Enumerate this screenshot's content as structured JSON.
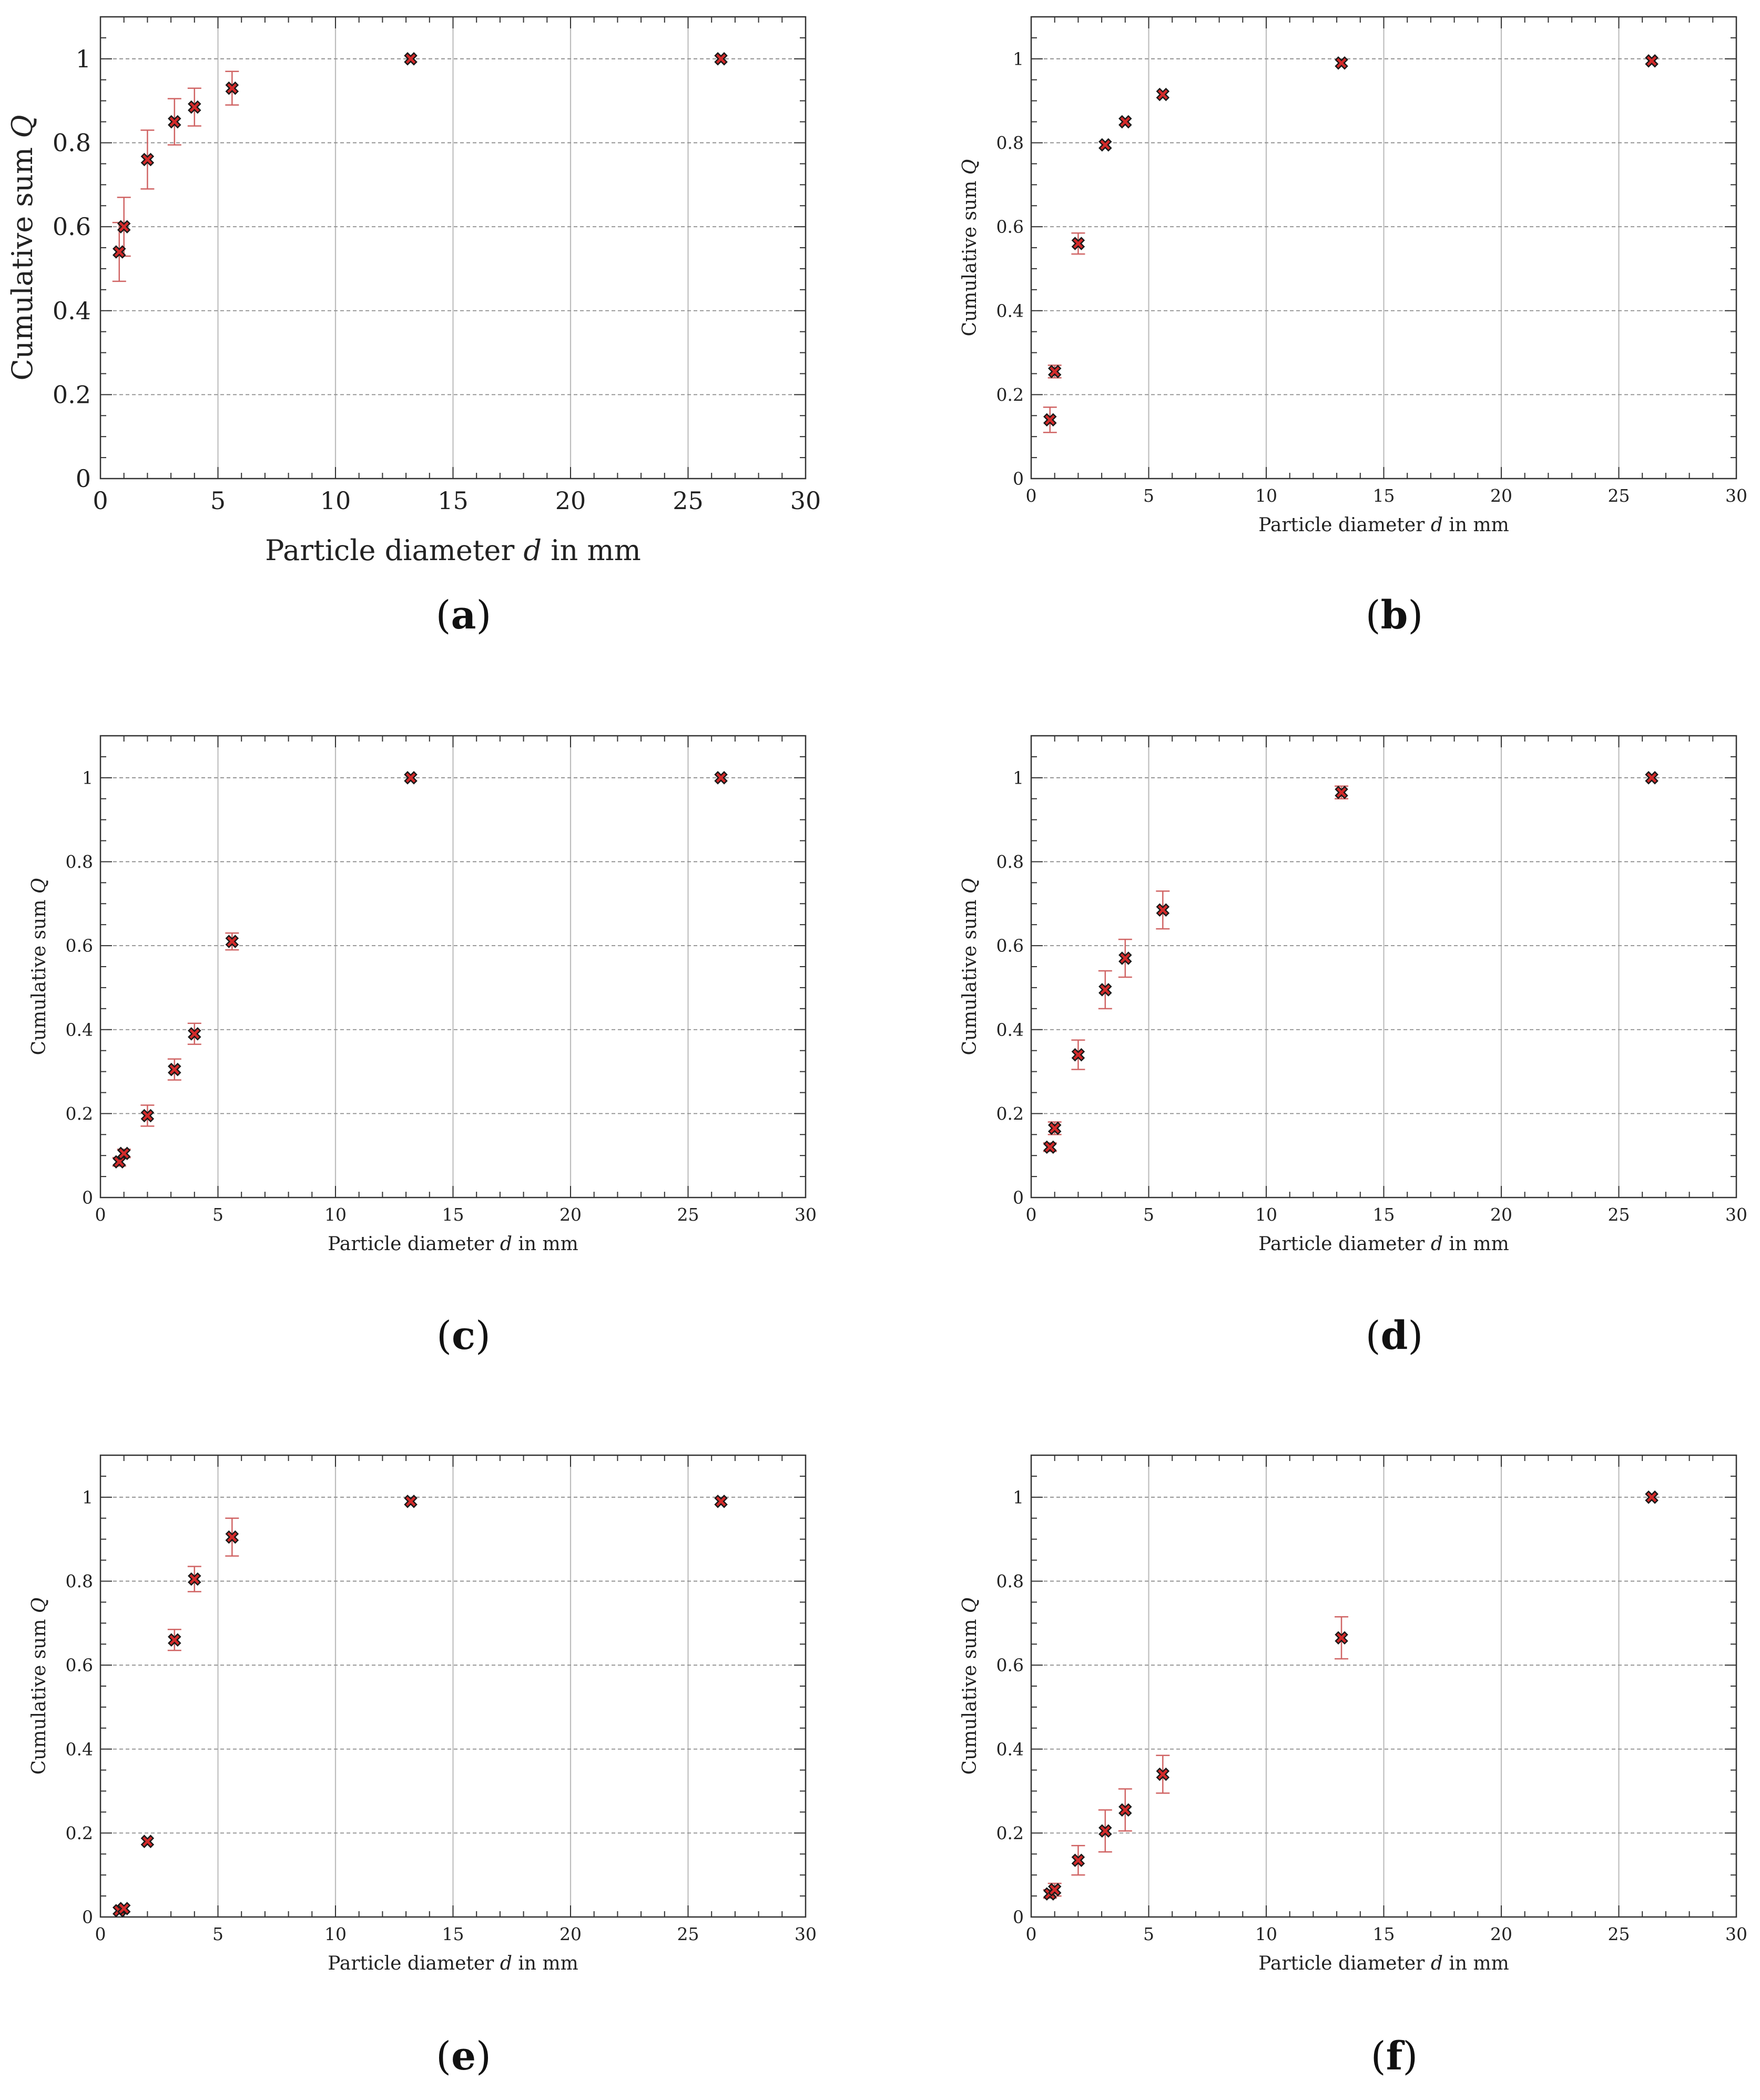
{
  "figure": {
    "colors": {
      "marker_fill": "#d42a2a",
      "marker_edge": "#1a1a1a",
      "errorbar": "#d06464",
      "grid_v": "#bdbdbd",
      "grid_h": "#8c8c8c",
      "axis": "#333333"
    }
  },
  "chart_data": [
    {
      "type": "scatter",
      "panel_label": "a",
      "panel_text": [
        "(",
        "a",
        ")"
      ],
      "xlabel_parts": [
        "Particle diameter ",
        "d",
        " in mm"
      ],
      "ylabel_parts": [
        "Cumulative sum ",
        "Q"
      ],
      "xlim": [
        0,
        30
      ],
      "ylim": [
        0,
        1.1
      ],
      "xticks": [
        0,
        5,
        10,
        15,
        20,
        25,
        30
      ],
      "xtick_labels": [
        "0",
        "5",
        "10",
        "15",
        "20",
        "25",
        "30"
      ],
      "yticks": [
        0,
        0.2,
        0.4,
        0.6,
        0.8,
        1
      ],
      "ytick_labels": [
        "0",
        "0.2",
        "0.4",
        "0.6",
        "0.8",
        "1"
      ],
      "x": [
        0.8,
        1.0,
        2.0,
        3.15,
        4.0,
        5.6,
        13.2,
        26.4
      ],
      "y": [
        0.54,
        0.6,
        0.76,
        0.85,
        0.885,
        0.93,
        1.0,
        1.0
      ],
      "yerr": [
        0.07,
        0.07,
        0.07,
        0.055,
        0.045,
        0.04,
        0.0,
        0.0
      ]
    },
    {
      "type": "scatter",
      "panel_label": "b",
      "panel_text": [
        "(",
        "b",
        ")"
      ],
      "xlabel_parts": [
        "Particle diameter ",
        "d",
        " in mm"
      ],
      "ylabel_parts": [
        "Cumulative sum ",
        "Q"
      ],
      "xlim": [
        0,
        30
      ],
      "ylim": [
        0,
        1.1
      ],
      "xticks": [
        0,
        5,
        10,
        15,
        20,
        25,
        30
      ],
      "xtick_labels": [
        "0",
        "5",
        "10",
        "15",
        "20",
        "25",
        "30"
      ],
      "yticks": [
        0,
        0.2,
        0.4,
        0.6,
        0.8,
        1
      ],
      "ytick_labels": [
        "0",
        "0.2",
        "0.4",
        "0.6",
        "0.8",
        "1"
      ],
      "x": [
        0.8,
        1.0,
        2.0,
        3.15,
        4.0,
        5.6,
        13.2,
        26.4
      ],
      "y": [
        0.14,
        0.255,
        0.56,
        0.795,
        0.85,
        0.915,
        0.99,
        0.995
      ],
      "yerr": [
        0.03,
        0.015,
        0.025,
        0.0,
        0.0,
        0.0,
        0.0,
        0.0
      ]
    },
    {
      "type": "scatter",
      "panel_label": "c",
      "panel_text": [
        "(",
        "c",
        ")"
      ],
      "xlabel_parts": [
        "Particle diameter ",
        "d",
        " in mm"
      ],
      "ylabel_parts": [
        "Cumulative sum ",
        "Q"
      ],
      "xlim": [
        0,
        30
      ],
      "ylim": [
        0,
        1.1
      ],
      "xticks": [
        0,
        5,
        10,
        15,
        20,
        25,
        30
      ],
      "xtick_labels": [
        "0",
        "5",
        "10",
        "15",
        "20",
        "25",
        "30"
      ],
      "yticks": [
        0,
        0.2,
        0.4,
        0.6,
        0.8,
        1
      ],
      "ytick_labels": [
        "0",
        "0.2",
        "0.4",
        "0.6",
        "0.8",
        "1"
      ],
      "x": [
        0.8,
        1.0,
        2.0,
        3.15,
        4.0,
        5.6,
        13.2,
        26.4
      ],
      "y": [
        0.085,
        0.105,
        0.195,
        0.305,
        0.39,
        0.61,
        1.0,
        1.0
      ],
      "yerr": [
        0.01,
        0.01,
        0.025,
        0.025,
        0.025,
        0.02,
        0.0,
        0.0
      ]
    },
    {
      "type": "scatter",
      "panel_label": "d",
      "panel_text": [
        "(",
        "d",
        ")"
      ],
      "xlabel_parts": [
        "Particle diameter ",
        "d",
        " in mm"
      ],
      "ylabel_parts": [
        "Cumulative sum ",
        "Q"
      ],
      "xlim": [
        0,
        30
      ],
      "ylim": [
        0,
        1.1
      ],
      "xticks": [
        0,
        5,
        10,
        15,
        20,
        25,
        30
      ],
      "xtick_labels": [
        "0",
        "5",
        "10",
        "15",
        "20",
        "25",
        "30"
      ],
      "yticks": [
        0,
        0.2,
        0.4,
        0.6,
        0.8,
        1
      ],
      "ytick_labels": [
        "0",
        "0.2",
        "0.4",
        "0.6",
        "0.8",
        "1"
      ],
      "x": [
        0.8,
        1.0,
        2.0,
        3.15,
        4.0,
        5.6,
        13.2,
        26.4
      ],
      "y": [
        0.12,
        0.165,
        0.34,
        0.495,
        0.57,
        0.685,
        0.965,
        1.0
      ],
      "yerr": [
        0.01,
        0.015,
        0.035,
        0.045,
        0.045,
        0.045,
        0.015,
        0.0
      ]
    },
    {
      "type": "scatter",
      "panel_label": "e",
      "panel_text": [
        "(",
        "e",
        ")"
      ],
      "xlabel_parts": [
        "Particle diameter ",
        "d",
        " in mm"
      ],
      "ylabel_parts": [
        "Cumulative sum ",
        "Q"
      ],
      "xlim": [
        0,
        30
      ],
      "ylim": [
        0,
        1.1
      ],
      "xticks": [
        0,
        5,
        10,
        15,
        20,
        25,
        30
      ],
      "xtick_labels": [
        "0",
        "5",
        "10",
        "15",
        "20",
        "25",
        "30"
      ],
      "yticks": [
        0,
        0.2,
        0.4,
        0.6,
        0.8,
        1
      ],
      "ytick_labels": [
        "0",
        "0.2",
        "0.4",
        "0.6",
        "0.8",
        "1"
      ],
      "x": [
        0.8,
        1.0,
        2.0,
        3.15,
        4.0,
        5.6,
        13.2,
        26.4
      ],
      "y": [
        0.015,
        0.02,
        0.18,
        0.66,
        0.805,
        0.905,
        0.99,
        0.99
      ],
      "yerr": [
        0.0,
        0.0,
        0.0,
        0.025,
        0.03,
        0.045,
        0.0,
        0.0
      ]
    },
    {
      "type": "scatter",
      "panel_label": "f",
      "panel_text": [
        "(",
        "f",
        ")"
      ],
      "xlabel_parts": [
        "Particle diameter ",
        "d",
        " in mm"
      ],
      "ylabel_parts": [
        "Cumulative sum ",
        "Q"
      ],
      "xlim": [
        0,
        30
      ],
      "ylim": [
        0,
        1.1
      ],
      "xticks": [
        0,
        5,
        10,
        15,
        20,
        25,
        30
      ],
      "xtick_labels": [
        "0",
        "5",
        "10",
        "15",
        "20",
        "25",
        "30"
      ],
      "yticks": [
        0,
        0.2,
        0.4,
        0.6,
        0.8,
        1
      ],
      "ytick_labels": [
        "0",
        "0.2",
        "0.4",
        "0.6",
        "0.8",
        "1"
      ],
      "x": [
        0.8,
        1.0,
        2.0,
        3.15,
        4.0,
        5.6,
        13.2,
        26.4
      ],
      "y": [
        0.055,
        0.065,
        0.135,
        0.205,
        0.255,
        0.34,
        0.665,
        1.0
      ],
      "yerr": [
        0.01,
        0.015,
        0.035,
        0.05,
        0.05,
        0.045,
        0.05,
        0.0
      ]
    }
  ]
}
